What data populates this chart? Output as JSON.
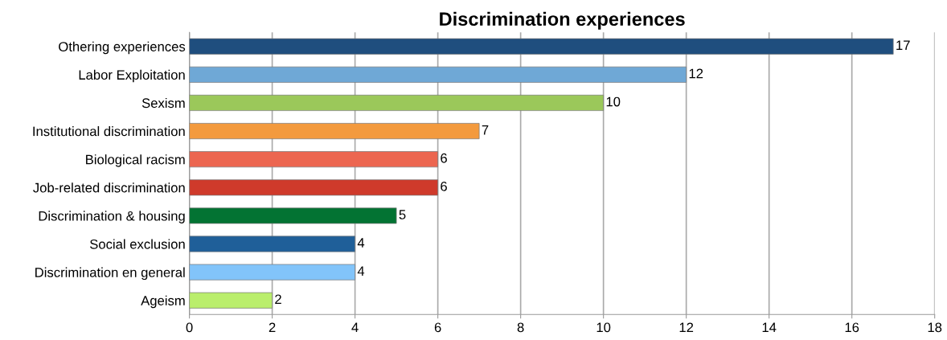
{
  "chart_data": {
    "type": "bar",
    "orientation": "horizontal",
    "title": "Discrimination experiences",
    "categories": [
      "Othering experiences",
      "Labor Exploitation",
      "Sexism",
      "Institutional discrimination",
      "Biological racism",
      "Job-related discrimination",
      "Discrimination & housing",
      "Social exclusion",
      "Discrimination en general",
      "Ageism"
    ],
    "values": [
      17,
      12,
      10,
      7,
      6,
      6,
      5,
      4,
      4,
      2
    ],
    "colors": [
      "#1f4e7e",
      "#6fa8d6",
      "#9bc85a",
      "#f39a3e",
      "#ec6650",
      "#cf3a2b",
      "#037333",
      "#1f5f99",
      "#82c4fa",
      "#baee6c"
    ],
    "xlim": [
      0,
      18
    ],
    "xticks": [
      0,
      2,
      4,
      6,
      8,
      10,
      12,
      14,
      16,
      18
    ],
    "grid": "x",
    "data_labels": true
  }
}
